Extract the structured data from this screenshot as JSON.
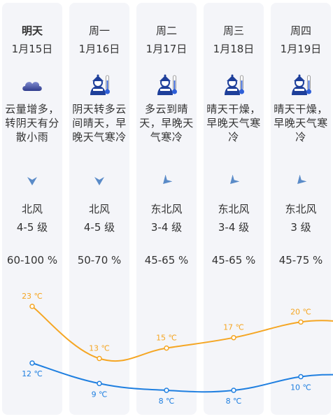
{
  "days": [
    {
      "day": "明天",
      "date": "1月15日",
      "weather_icon": "cloud-rain-icon",
      "description": "云量增多，\n转阴天有分\n散小雨",
      "wind_direction": "北风",
      "wind_arrow": "arrow-down-icon",
      "wind_level": "4-5 级",
      "humidity": "60-100 %",
      "high": "23 ℃",
      "low": "12 ℃"
    },
    {
      "day": "周一",
      "date": "1月16日",
      "weather_icon": "cold-warning-icon",
      "description": "阴天转多云\n间晴天，早\n晚天气寒冷",
      "wind_direction": "北风",
      "wind_arrow": "arrow-down-icon",
      "wind_level": "4-5 级",
      "humidity": "50-70 %",
      "high": "13 ℃",
      "low": "9 ℃"
    },
    {
      "day": "周二",
      "date": "1月17日",
      "weather_icon": "cold-warning-icon",
      "description": "多云到晴\n天，早晚天\n气寒冷",
      "wind_direction": "东北风",
      "wind_arrow": "arrow-southwest-icon",
      "wind_level": "3-4 级",
      "humidity": "45-65 %",
      "high": "15 ℃",
      "low": "8 ℃"
    },
    {
      "day": "周三",
      "date": "1月18日",
      "weather_icon": "cold-warning-icon",
      "description": "晴天干燥，\n早晚天气寒\n冷",
      "wind_direction": "东北风",
      "wind_arrow": "arrow-southwest-icon",
      "wind_level": "3-4 级",
      "humidity": "45-65 %",
      "high": "17 ℃",
      "low": "8 ℃"
    },
    {
      "day": "周四",
      "date": "1月19日",
      "weather_icon": "cold-warning-icon",
      "description": "晴天干燥，\n早晚天气寒\n冷",
      "wind_direction": "东北风",
      "wind_arrow": "arrow-southwest-icon",
      "wind_level": "3 级",
      "humidity": "45-75 %",
      "high": "20 ℃",
      "low": "10 ℃"
    }
  ],
  "chart_data": {
    "type": "line",
    "x": [
      "1月15日",
      "1月16日",
      "1月17日",
      "1月18日",
      "1月19日"
    ],
    "series": [
      {
        "values": [
          23,
          13,
          15,
          17,
          20
        ],
        "color": "#f5a623"
      },
      {
        "values": [
          12,
          9,
          8,
          8,
          10
        ],
        "color": "#1f7fe0"
      }
    ],
    "unit": "℃"
  }
}
